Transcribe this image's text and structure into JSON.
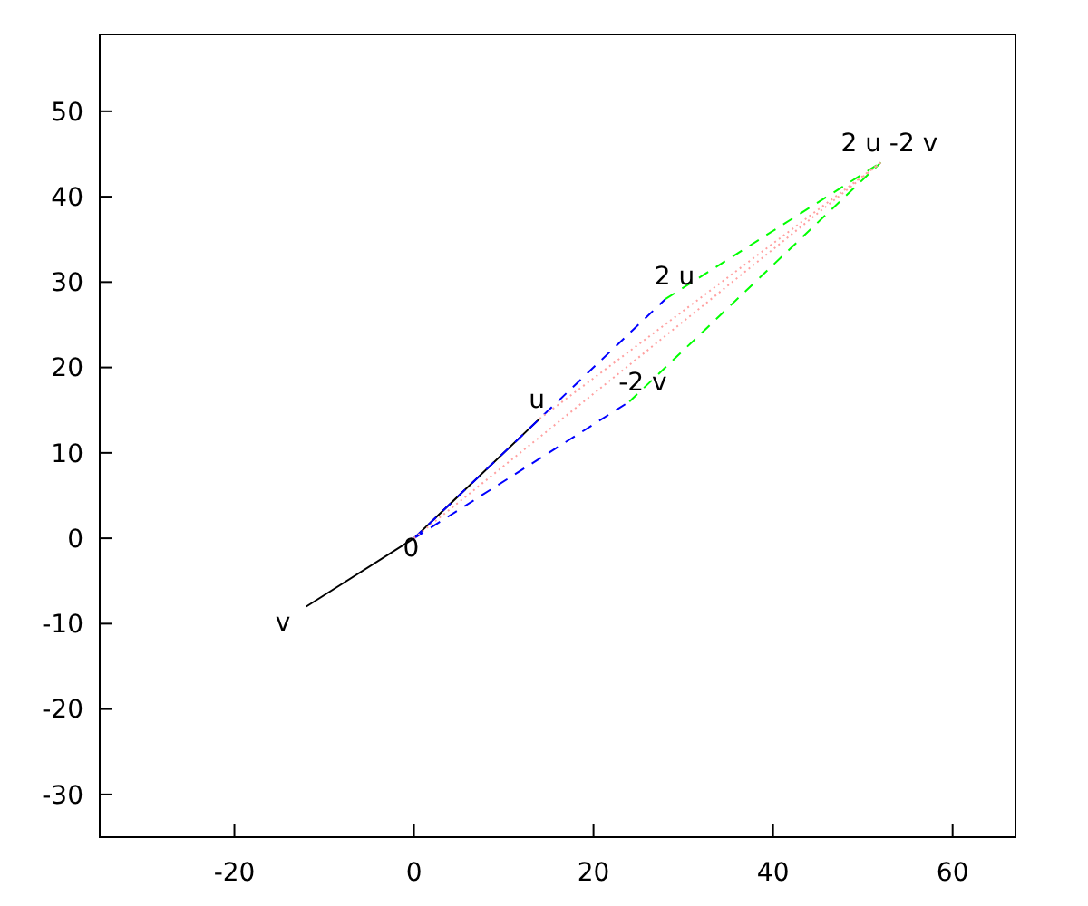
{
  "chart_data": {
    "type": "line",
    "xlim": [
      -35,
      67
    ],
    "ylim": [
      -35,
      59
    ],
    "xticks": [
      -20,
      0,
      20,
      40,
      60
    ],
    "yticks": [
      -30,
      -20,
      -10,
      0,
      10,
      20,
      30,
      40,
      50
    ],
    "grid": false,
    "marker": "none",
    "series": [
      {
        "color": "#000000",
        "line_style": "solid",
        "x": [
          -12,
          0,
          14
        ],
        "values": [
          -8,
          0,
          14
        ]
      },
      {
        "color": "#0000ff",
        "line_style": "dashed",
        "x": [
          0,
          28
        ],
        "values": [
          0,
          28
        ]
      },
      {
        "color": "#0000ff",
        "line_style": "dashed",
        "x": [
          0,
          24
        ],
        "values": [
          0,
          16
        ]
      },
      {
        "color": "#00ff00",
        "line_style": "dashed",
        "x": [
          28,
          52
        ],
        "values": [
          28,
          44
        ]
      },
      {
        "color": "#00ff00",
        "line_style": "dashed",
        "x": [
          24,
          52
        ],
        "values": [
          16,
          44
        ]
      },
      {
        "color": "#ffa0a0",
        "line_style": "dotted",
        "x": [
          0,
          52
        ],
        "values": [
          0,
          44
        ]
      },
      {
        "color": "#ffa0a0",
        "line_style": "dotted",
        "x": [
          14,
          52
        ],
        "values": [
          14,
          44
        ]
      }
    ],
    "annotations": [
      {
        "text": "0",
        "x": 0,
        "y": 0
      },
      {
        "text": "u",
        "x": 14,
        "y": 14
      },
      {
        "text": "v",
        "x": -12,
        "y": -8
      },
      {
        "text": "2 u",
        "x": 28,
        "y": 28
      },
      {
        "text": "-2 v",
        "x": 24,
        "y": 16
      },
      {
        "text": "2 u -2 v",
        "x": 52,
        "y": 44
      }
    ]
  }
}
